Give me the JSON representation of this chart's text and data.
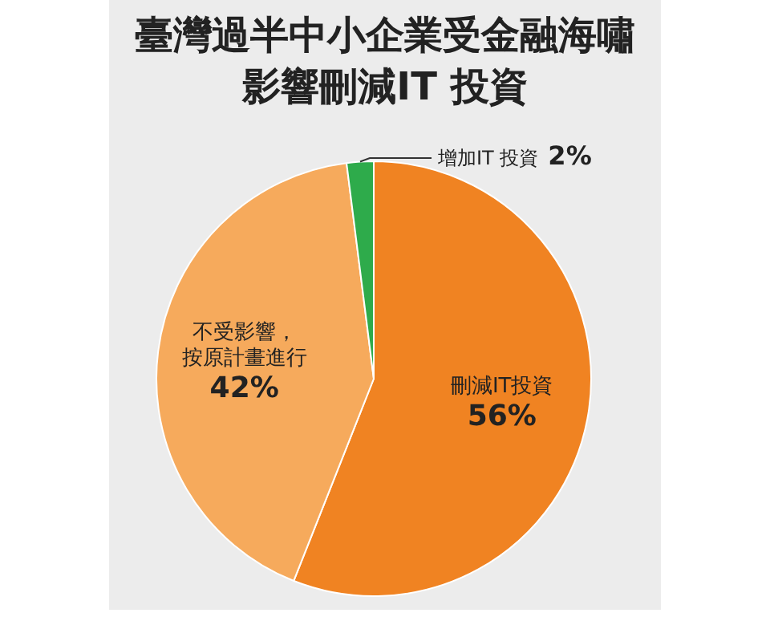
{
  "chart_data": {
    "type": "pie",
    "title": "臺灣過半中小企業受金融海嘯影響刪減IT 投資",
    "categories": [
      "刪減IT投資",
      "不受影響，按原計畫進行",
      "增加IT 投資"
    ],
    "values": [
      56,
      42,
      2
    ],
    "colors": [
      "#f08322",
      "#f6aa5c",
      "#2eab4b"
    ],
    "value_labels": [
      "56%",
      "42%",
      "2%"
    ]
  }
}
